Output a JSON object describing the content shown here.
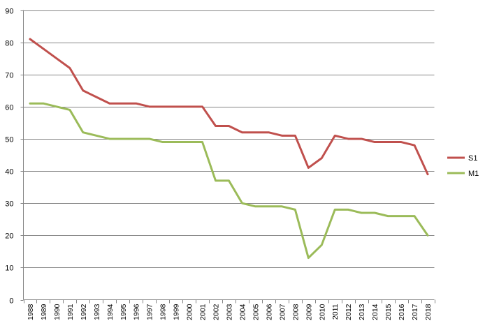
{
  "chart_data": {
    "type": "line",
    "title": "",
    "xlabel": "",
    "ylabel": "",
    "ylim": [
      0,
      90
    ],
    "y_ticks": [
      "0",
      "10",
      "20",
      "30",
      "40",
      "50",
      "60",
      "70",
      "80",
      "90"
    ],
    "grid": true,
    "legend_position": "right",
    "categories": [
      "1988",
      "1989",
      "1990",
      "1991",
      "1992",
      "1993",
      "1994",
      "1995",
      "1996",
      "1997",
      "1998",
      "1999",
      "2000",
      "2001",
      "2002",
      "2003",
      "2004",
      "2005",
      "2006",
      "2007",
      "2008",
      "2009",
      "2010",
      "2011",
      "2012",
      "2013",
      "2014",
      "2015",
      "2016",
      "2017",
      "2018"
    ],
    "series": [
      {
        "name": "S1",
        "color": "#c0504d",
        "values": [
          81,
          78,
          75,
          72,
          65,
          63,
          61,
          61,
          61,
          60,
          60,
          60,
          60,
          60,
          54,
          54,
          52,
          52,
          52,
          51,
          51,
          41,
          44,
          51,
          50,
          50,
          49,
          49,
          49,
          48,
          39
        ]
      },
      {
        "name": "M1",
        "color": "#9bbb59",
        "values": [
          61,
          61,
          60,
          59,
          52,
          51,
          50,
          50,
          50,
          50,
          49,
          49,
          49,
          49,
          37,
          37,
          30,
          29,
          29,
          29,
          28,
          13,
          17,
          28,
          28,
          27,
          27,
          26,
          26,
          26,
          20
        ]
      }
    ]
  }
}
